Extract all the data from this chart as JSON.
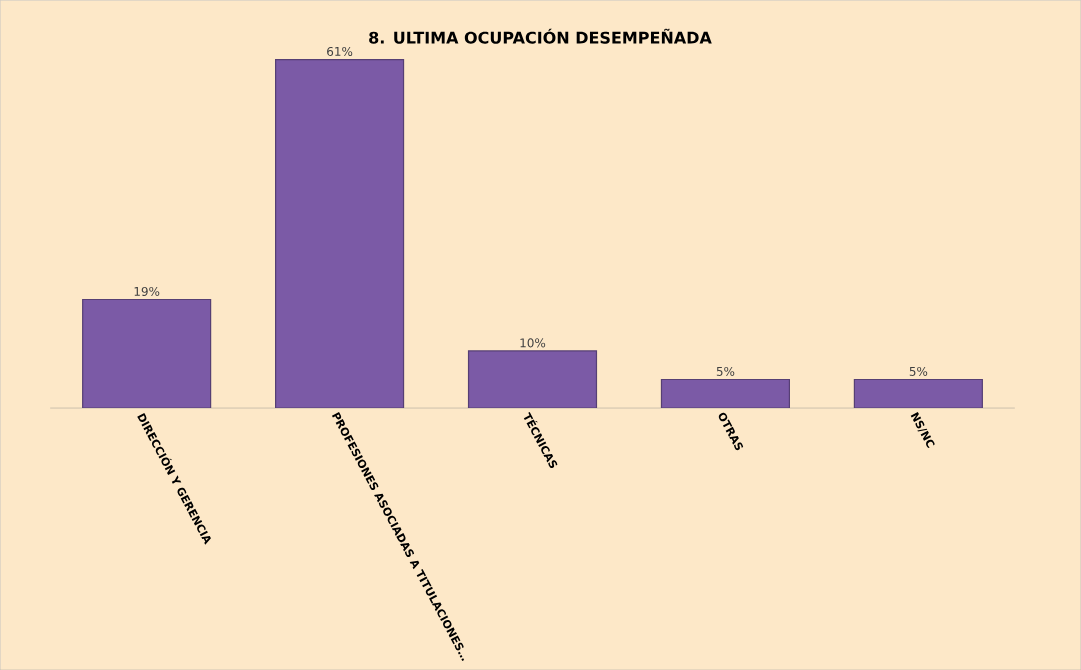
{
  "chart_data": {
    "type": "bar",
    "title": "8. ULTIMA OCUPACIÓN DESEMPEÑADA",
    "categories": [
      "DIRECCIÓN Y GERENCIA",
      "PROFESIONES ASOCIADAS A TITULACIONES…",
      "TÉCNICAS",
      "OTRAS",
      "NS/NC"
    ],
    "values": [
      19,
      61,
      10,
      5,
      5
    ],
    "value_labels": [
      "19%",
      "61%",
      "10%",
      "5%",
      "5%"
    ],
    "color": "#7b5aa6"
  }
}
